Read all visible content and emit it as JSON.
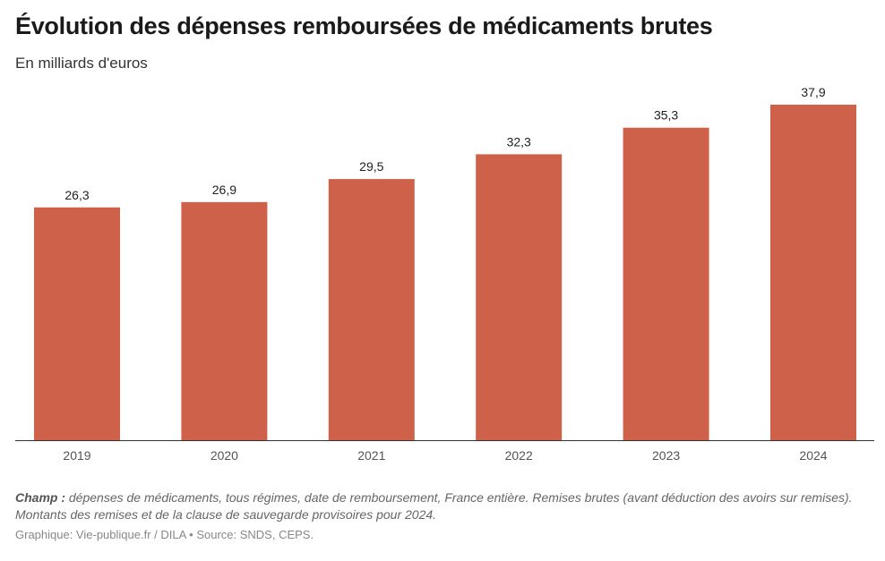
{
  "title": "Évolution des dépenses remboursées de médicaments brutes",
  "subtitle": "En milliards d'euros",
  "chart_data": {
    "type": "bar",
    "categories": [
      "2019",
      "2020",
      "2021",
      "2022",
      "2023",
      "2024"
    ],
    "values": [
      26.3,
      26.9,
      29.5,
      32.3,
      35.3,
      37.9
    ],
    "labels": [
      "26,3",
      "26,9",
      "29,5",
      "32,3",
      "35,3",
      "37,9"
    ],
    "ylim": [
      0,
      37.9
    ],
    "grid": false,
    "bar_color": "#cd614a"
  },
  "note": {
    "label": "Champ :",
    "text": " dépenses de médicaments, tous régimes, date de remboursement, France entière. Remises brutes (avant déduction des avoirs sur remises). Montants des remises et de la clause de sauvegarde provisoires pour 2024."
  },
  "credit": "Graphique: Vie-publique.fr / DILA • Source: SNDS, CEPS."
}
